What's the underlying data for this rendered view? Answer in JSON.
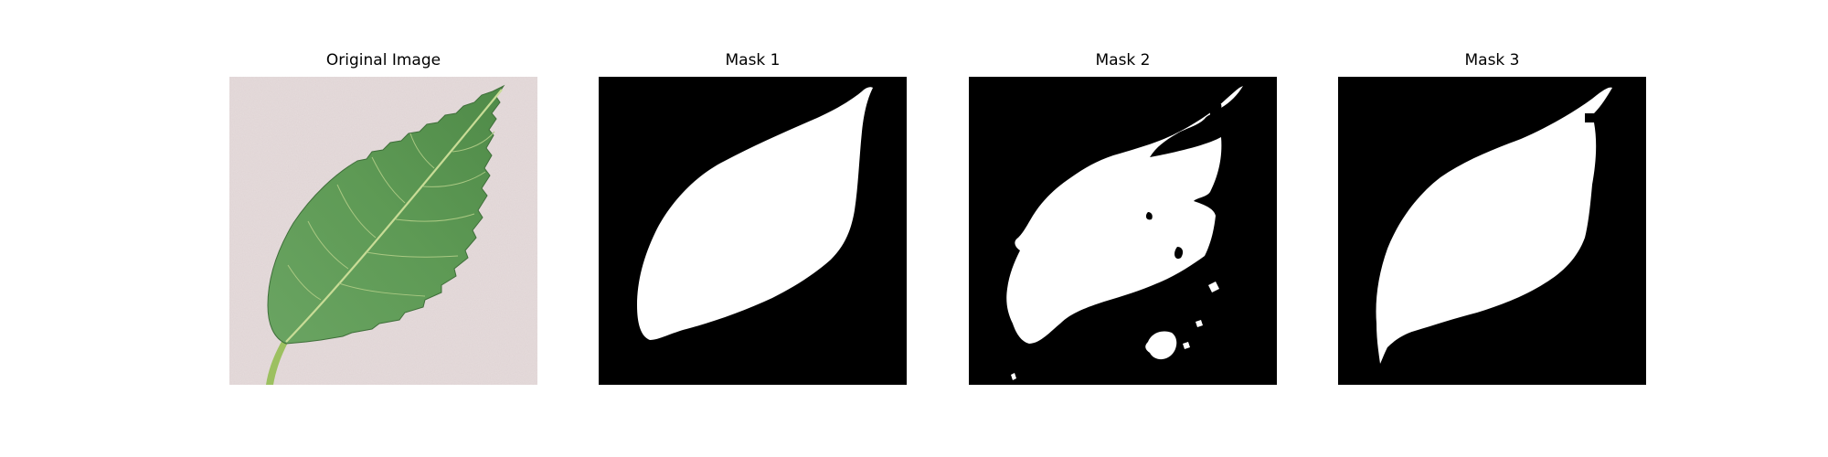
{
  "figure": {
    "panels": [
      {
        "title": "Original Image"
      },
      {
        "title": "Mask 1"
      },
      {
        "title": "Mask 2"
      },
      {
        "title": "Mask 3"
      }
    ]
  },
  "colors": {
    "figure_background": "#ffffff",
    "photo_background": "#e6dcdc",
    "leaf": "#5e9a55",
    "leaf_vein": "#c8dc96",
    "stem": "#9cc060",
    "mask_background": "#000000",
    "mask_foreground": "#ffffff"
  }
}
